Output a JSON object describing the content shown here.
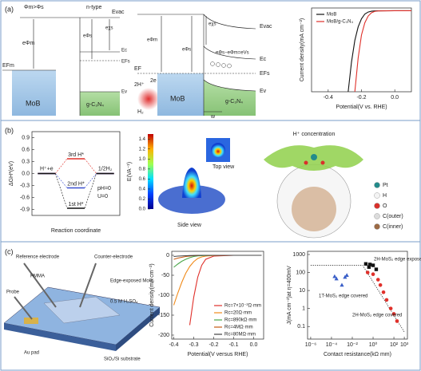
{
  "panels": {
    "a": "(a)",
    "b": "(b)",
    "c": "(c)"
  },
  "band_diagram": {
    "condition": "Φm>Φs",
    "type_label": "n-type",
    "evac": "Evac",
    "e_phi_m": "eΦm",
    "e_phi_s": "eΦs",
    "e_chi_s": "eχs",
    "efm": "EFm",
    "ec": "Ec",
    "efs": "EFs",
    "ev": "Ev",
    "metal": "MoB",
    "semi": "g-C₃N₄"
  },
  "contact_diagram": {
    "evac": "Evac",
    "e_phi_m": "eΦm",
    "e_chi_s": "eχs",
    "e_phi_s": "eΦs",
    "barrier": "eΦs−eΦm=eVs",
    "ec": "Ec",
    "ef": "EF",
    "efs": "EFs",
    "ev": "Ev",
    "protons": "2H⁺",
    "electrons": "2e",
    "h2": "H₂",
    "metal": "MoB",
    "semi": "g-C₃N₄",
    "width": "w"
  },
  "field_map": {
    "title": "E(VA⁻¹)",
    "lim": [
      0,
      1.5
    ],
    "ticks": [
      1.4,
      1.2,
      {
        "value": 1,
        "label": "1.0"
      },
      0.8,
      0.6,
      0.4,
      0.2,
      {
        "value": 0,
        "label": "0.0"
      }
    ],
    "top": "Top view",
    "side": "Side view"
  },
  "cage": {
    "label": "H⁺ concentration",
    "legend": [
      {
        "name": "Pt",
        "color": "#238b8b"
      },
      {
        "name": "H",
        "color": "#f4f4f4"
      },
      {
        "name": "O",
        "color": "#d9302b"
      },
      {
        "name": "C(outer)",
        "color": "#dcdcdc"
      },
      {
        "name": "C(inner)",
        "color": "#9c6a44"
      }
    ]
  },
  "device": {
    "reference": "Reference electrode",
    "counter": "Counter-electrode",
    "pmma": "PMMA",
    "probe": "Probe",
    "edge": "Edge-exposed MoS₂",
    "electrolyte": "0.5 M H₂SO₄",
    "pad": "Au pad",
    "substrate": "SiO₂/Si substrate"
  },
  "chart_data": [
    {
      "type": "line",
      "xlabel": "Potential(V vs. RHE)",
      "ylabel": "Current density(mA cm⁻²)",
      "xlim": [
        -0.5,
        0.1
      ],
      "xticks": [
        -0.4,
        -0.2,
        {
          "value": 0,
          "label": "0.0"
        }
      ],
      "ylim": [
        -60,
        2
      ],
      "legend": "upper left",
      "x": [
        -0.28,
        -0.26,
        -0.24,
        -0.22,
        -0.2,
        -0.18,
        -0.16,
        -0.14,
        -0.12,
        -0.1,
        0,
        0.1
      ],
      "series": [
        {
          "name": "MoB",
          "color": "#111111",
          "values": [
            -60,
            -38,
            -22,
            -12,
            -6,
            -2.5,
            -1,
            -0.4,
            -0.2,
            -0.1,
            0,
            0
          ]
        },
        {
          "name": "MoB/g-C₃N₄",
          "color": "#e0302a",
          "values": [
            null,
            null,
            -60,
            -35,
            -18,
            -9,
            -4,
            -1.5,
            -0.5,
            -0.2,
            0,
            0
          ]
        }
      ]
    },
    {
      "type": "energy",
      "ylabel": "ΔGH*(eV)",
      "xlabel": "Reaction coordinate",
      "categories": [
        "H⁺+e",
        null,
        "1/2H₂"
      ],
      "ylim": [
        -1.05,
        1.05
      ],
      "yticks": [
        0.9,
        0.6,
        0.3,
        {
          "value": 0,
          "label": "0.0"
        },
        -0.3,
        -0.6,
        -0.9
      ],
      "series": [
        {
          "name": "3rd H*",
          "color": "#e0302a",
          "values": [
            0,
            0.37,
            0
          ]
        },
        {
          "name": "2nd H*",
          "color": "#3a4fd0",
          "values": [
            0,
            -0.36,
            0
          ]
        },
        {
          "name": "1st H*",
          "color": "#111111",
          "values": [
            0,
            -0.87,
            0
          ]
        }
      ],
      "annotations": [
        "pH=0",
        "U=0"
      ]
    },
    {
      "type": "line",
      "xlabel": "Potential(V versus RHE)",
      "ylabel": "Current density(mA cm⁻²)",
      "xlim": [
        -0.41,
        0.05
      ],
      "xticks": [
        -0.4,
        -0.3,
        -0.2,
        -0.1,
        {
          "value": 0,
          "label": "0.0"
        }
      ],
      "ylim": [
        -210,
        10
      ],
      "yticks": [
        0,
        -50,
        -100,
        -150,
        -200
      ],
      "legend": "lower right",
      "x": [
        -0.4,
        -0.38,
        -0.36,
        -0.34,
        -0.32,
        -0.3,
        -0.28,
        -0.26,
        -0.24,
        -0.2,
        -0.1,
        0,
        0.04
      ],
      "series": [
        {
          "name": "Rc=7×10⁻²Ω·mm",
          "color": "#e0302a",
          "values": [
            null,
            null,
            null,
            null,
            -175,
            -105,
            -55,
            -25,
            -10,
            -2,
            0,
            0,
            0
          ]
        },
        {
          "name": "Rc=20Ω·mm",
          "color": "#f08a1a",
          "values": [
            -125,
            -95,
            -68,
            -45,
            -28,
            -16,
            -8,
            -4,
            -2,
            -0.5,
            0,
            0,
            0
          ]
        },
        {
          "name": "Rc=890kΩ·mm",
          "color": "#4aa64a",
          "values": [
            -30,
            -22,
            -15,
            -10,
            -6,
            -3,
            -1.5,
            -0.8,
            -0.3,
            0,
            0,
            0,
            0
          ]
        },
        {
          "name": "Rc=4MΩ·mm",
          "color": "#c55a11",
          "values": [
            -10,
            -7,
            -5,
            -3,
            -2,
            -1,
            -0.5,
            0,
            0,
            0,
            0,
            0,
            0
          ]
        },
        {
          "name": "Rc=80MΩ·mm",
          "color": "#444444",
          "values": [
            -3,
            -2,
            -1.5,
            -1,
            -0.6,
            -0.3,
            0,
            0,
            0,
            0,
            0,
            0,
            0
          ]
        }
      ]
    },
    {
      "type": "scatter",
      "log_x": true,
      "log_y": true,
      "xlabel": "Contact resistance(kΩ mm)",
      "ylabel": "J(mA cm⁻²)at η=400mV",
      "xlim": [
        5e-07,
        2000
      ],
      "ylim": [
        0.02,
        1500
      ],
      "xticks": [
        {
          "value": 1e-06,
          "label": "10⁻⁶"
        },
        {
          "value": 0.0001,
          "label": "10⁻⁴"
        },
        {
          "value": 0.01,
          "label": "10⁻²"
        },
        {
          "value": 1,
          "label": "10⁰"
        },
        {
          "value": 100,
          "label": "10²"
        },
        {
          "value": 1000,
          "label": "10³"
        }
      ],
      "yticks": [
        1000,
        100,
        10,
        1,
        0.1
      ],
      "guide": {
        "x": [
          1e-06,
          0.1,
          1000
        ],
        "y": [
          250,
          250,
          0.05
        ]
      },
      "series": [
        {
          "name": "2H-MoS₂ edge exposed",
          "color": "#111111",
          "marker": "square",
          "x": [
            0.2,
            0.4,
            0.5,
            1,
            2
          ],
          "values": [
            300,
            200,
            280,
            250,
            150
          ]
        },
        {
          "name": "1T-MoS₂ edge covered",
          "color": "#3a5fc8",
          "marker": "triangle",
          "x": [
            0.0002,
            0.0003,
            0.001,
            0.002,
            0.003
          ],
          "values": [
            60,
            45,
            20,
            55,
            70
          ]
        },
        {
          "name": "2H-MoS₂ edge covered",
          "color": "#e0302a",
          "marker": "circle",
          "x": [
            0.3,
            1,
            3,
            5,
            10,
            20,
            50,
            100,
            200
          ],
          "values": [
            100,
            80,
            40,
            20,
            8,
            3,
            1,
            0.5,
            0.2
          ]
        }
      ]
    }
  ]
}
